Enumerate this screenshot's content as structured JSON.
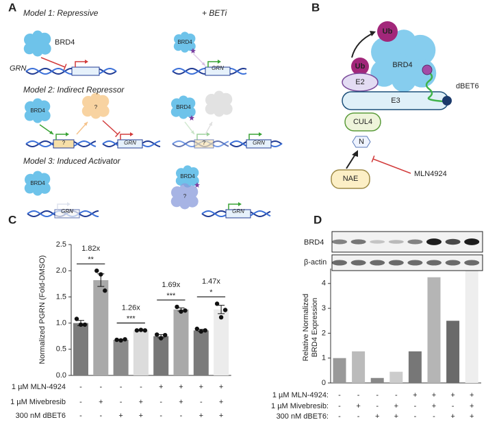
{
  "panel_a": {
    "label": "A",
    "beti": "+ BETi",
    "models": [
      {
        "title": "Model 1: Repressive",
        "brd4_left": "BRD4",
        "gene_left": "GRN",
        "brd4_right": "BRD4",
        "gene_right": "GRN"
      },
      {
        "title": "Model 2: Indirect Repressor",
        "brd4_left": "BRD4",
        "factor_left": "?",
        "box_left": "?",
        "gene_left": "GRN",
        "brd4_right": "BRD4",
        "box_right": "?",
        "gene_right": "GRN"
      },
      {
        "title": "Model 3: Induced Activator",
        "brd4_left": "BRD4",
        "gene_left": "GRN",
        "brd4_right": "BRD4",
        "factor_right": "?",
        "gene_right": "GRN"
      }
    ]
  },
  "panel_b": {
    "label": "B",
    "ub_top": "Ub",
    "brd4": "BRD4",
    "ub_e2": "Ub",
    "e2": "E2",
    "e3": "E3",
    "degrader": "dBET6",
    "cul4": "CUL4",
    "nedd8": "N",
    "nae": "NAE",
    "inhibitor": "MLN4924"
  },
  "chart_data": [
    {
      "type": "bar",
      "panel_label": "C",
      "ylabel": "Normalized PGRN (Fold-DMSO)",
      "values": [
        1.0,
        1.82,
        0.68,
        0.86,
        0.75,
        1.26,
        0.86,
        1.26
      ],
      "errors": [
        0.05,
        0.12,
        0.01,
        0.01,
        0.03,
        0.03,
        0.02,
        0.08
      ],
      "points": [
        [
          1.08,
          0.97,
          0.97
        ],
        [
          2.0,
          1.93,
          1.62
        ],
        [
          0.68,
          0.67,
          0.69
        ],
        [
          0.86,
          0.87,
          0.86
        ],
        [
          0.78,
          0.71,
          0.77
        ],
        [
          1.31,
          1.22,
          1.24
        ],
        [
          0.89,
          0.84,
          0.86
        ],
        [
          1.37,
          1.11,
          1.25
        ]
      ],
      "colors": [
        "#7b7b7b",
        "#a9a9a9",
        "#8a8a8a",
        "#dcdcdc",
        "#777777",
        "#a9a9a9",
        "#7b7b7b",
        "#ececec"
      ],
      "ylim": [
        0,
        2.5
      ],
      "yticks": [
        {
          "value": 0,
          "label": "0.0"
        },
        0.5,
        {
          "value": 1,
          "label": "1.0"
        },
        1.5,
        {
          "value": 2,
          "label": "2.0"
        },
        2.5
      ],
      "comparisons": [
        {
          "ratio": "1.82x",
          "significance": "**"
        },
        {
          "ratio": "1.26x",
          "significance": "***"
        },
        {
          "ratio": "1.69x",
          "significance": "***"
        },
        {
          "ratio": "1.47x",
          "significance": "*"
        }
      ],
      "conditions": [
        {
          "label": "1 µM MLN-4924",
          "signs": [
            "-",
            "-",
            "-",
            "-",
            "+",
            "+",
            "+",
            "+"
          ]
        },
        {
          "label": "1 µM Mivebresib",
          "signs": [
            "-",
            "+",
            "-",
            "+",
            "-",
            "+",
            "-",
            "+"
          ]
        },
        {
          "label": "300 nM dBET6",
          "signs": [
            "-",
            "-",
            "+",
            "+",
            "-",
            "-",
            "+",
            "+"
          ]
        }
      ]
    },
    {
      "type": "bar",
      "panel_label": "D",
      "ylabel": [
        "Relative Normalized",
        "BRD4 Expression"
      ],
      "blot_labels": [
        "BRD4",
        "β-actin"
      ],
      "values": [
        1.0,
        1.27,
        0.2,
        0.45,
        1.27,
        4.25,
        2.5,
        4.57
      ],
      "colors": [
        "#999999",
        "#bbbbbb",
        "#888888",
        "#cccccc",
        "#777777",
        "#b5b5b5",
        "#6a6a6a",
        "#eeeeee"
      ],
      "ylim": [
        0,
        4.6
      ],
      "yticks": [
        0,
        1,
        2,
        3,
        4
      ],
      "conditions": [
        {
          "label": "1 µM MLN-4924:",
          "signs": [
            "-",
            "-",
            "-",
            "-",
            "+",
            "+",
            "+",
            "+"
          ]
        },
        {
          "label": "1 µM Mivebresib:",
          "signs": [
            "-",
            "+",
            "-",
            "+",
            "-",
            "+",
            "-",
            "+"
          ]
        },
        {
          "label": "300 nM dBET6:",
          "signs": [
            "-",
            "-",
            "+",
            "+",
            "-",
            "-",
            "+",
            "+"
          ]
        }
      ]
    }
  ]
}
